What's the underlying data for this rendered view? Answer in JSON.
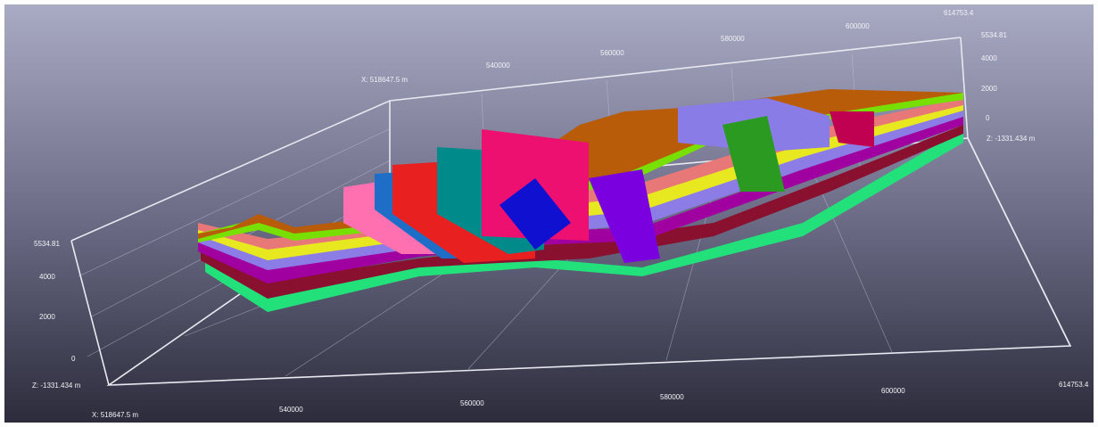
{
  "viewer": {
    "bottom_x_axis": {
      "labels": [
        "X: 518647.5 m",
        "540000",
        "560000",
        "580000",
        "600000",
        "614753.4"
      ]
    },
    "top_x_axis": {
      "labels": [
        "X: 518647.5 m",
        "540000",
        "560000",
        "580000",
        "600000",
        "614753.4"
      ]
    },
    "left_z_axis": {
      "labels": [
        "5534.81",
        "4000",
        "2000",
        "0",
        "Z: -1331.434 m"
      ]
    },
    "right_z_axis": {
      "labels": [
        "5534.81",
        "4000",
        "2000",
        "0",
        "Z: -1331.434 m"
      ]
    }
  }
}
